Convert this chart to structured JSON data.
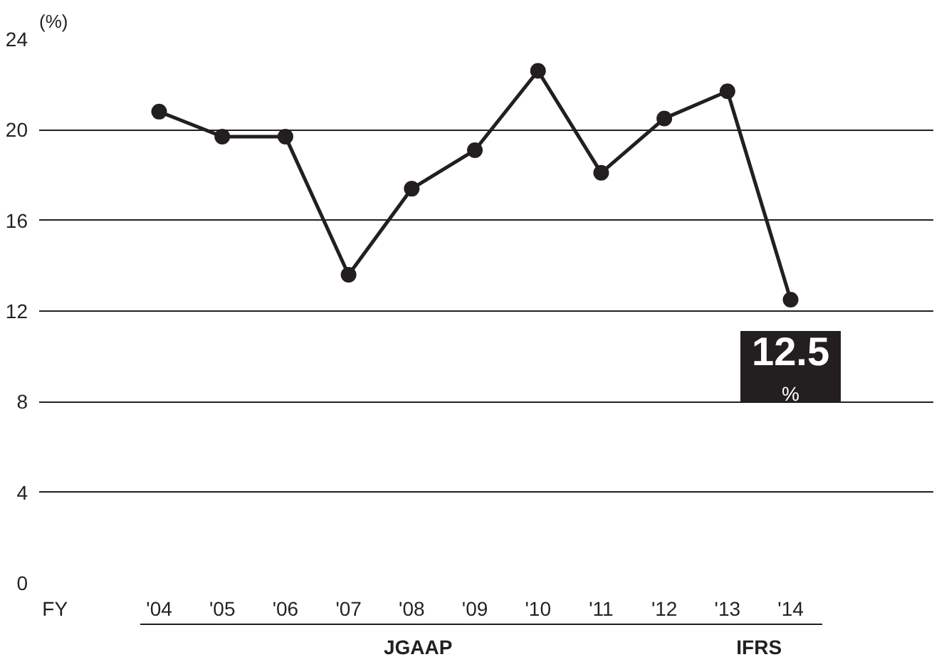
{
  "chart_data": {
    "type": "line",
    "ylabel": "(%)",
    "xlabel": "FY",
    "categories": [
      "'04",
      "'05",
      "'06",
      "'07",
      "'08",
      "'09",
      "'10",
      "'11",
      "'12",
      "'13",
      "'14"
    ],
    "series": [
      {
        "color": "#231f20",
        "values": [
          20.8,
          19.7,
          19.7,
          13.6,
          17.4,
          19.1,
          22.6,
          18.1,
          20.5,
          21.7,
          12.5
        ],
        "value_labels": [
          null,
          null,
          null,
          null,
          null,
          null,
          null,
          null,
          null,
          null,
          "12.5"
        ]
      }
    ],
    "ylim": [
      0,
      24
    ],
    "yticks": [
      0,
      4,
      8,
      12,
      16,
      20,
      24
    ],
    "grid": "y",
    "marker": "circle",
    "line_style": "solid",
    "annotations": [
      "JGAAP",
      "IFRS",
      "%"
    ]
  }
}
